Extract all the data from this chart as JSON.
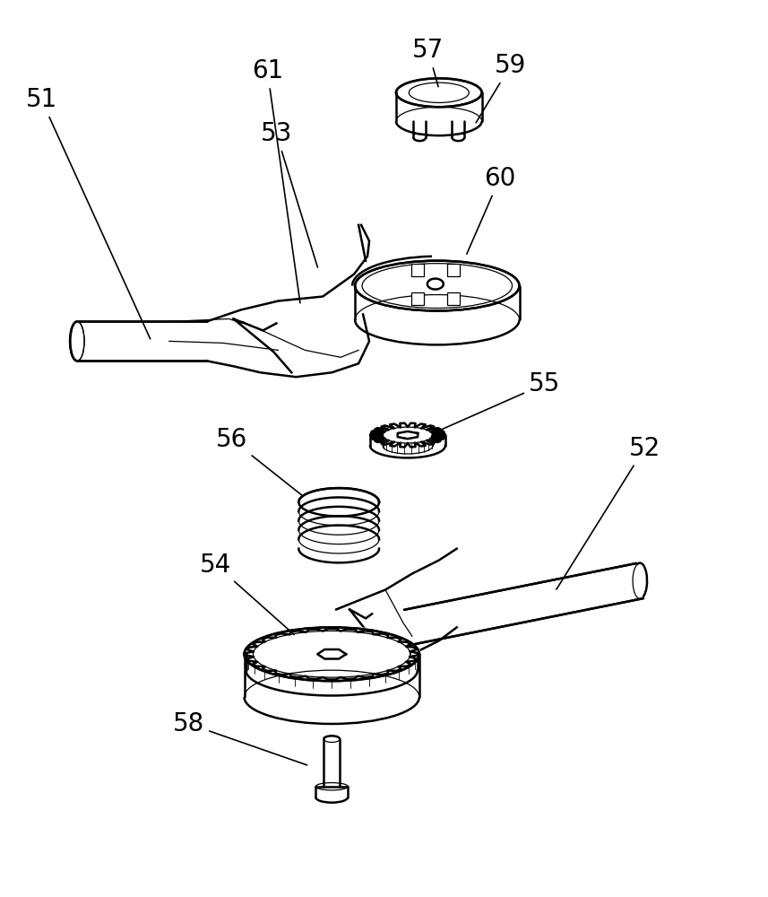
{
  "background_color": "#ffffff",
  "line_color": "#000000",
  "lw": 1.8,
  "tlw": 0.9,
  "font_size": 20,
  "fig_width": 8.57,
  "fig_height": 10.0
}
